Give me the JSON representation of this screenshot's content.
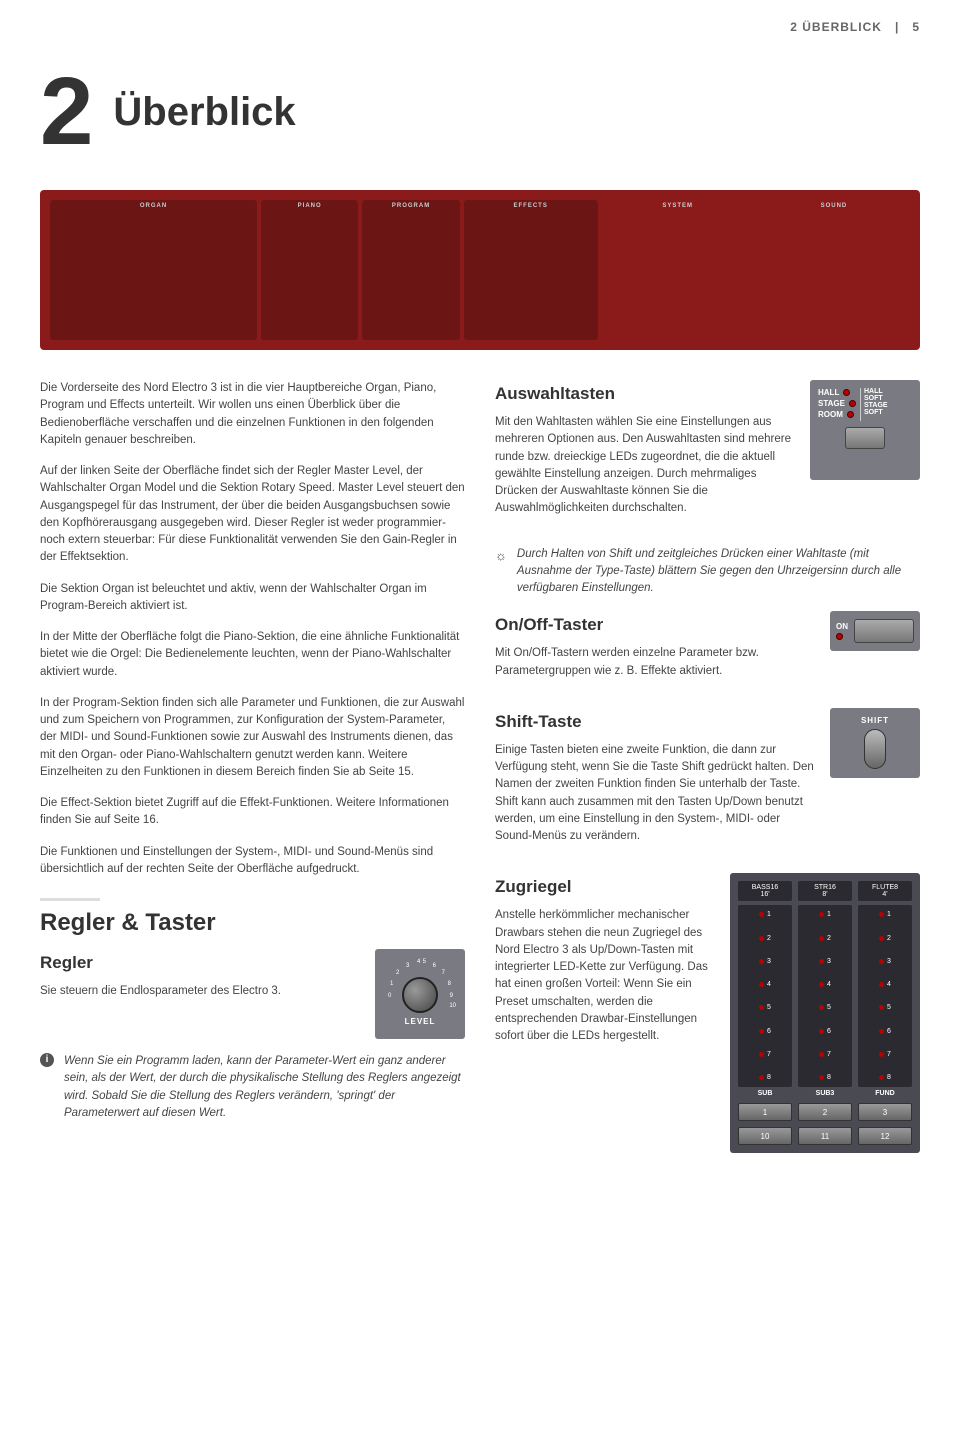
{
  "header": {
    "section": "2 ÜBERBLICK",
    "pagebar": "|",
    "pagenum": "5"
  },
  "chapter": {
    "num": "2",
    "title": "Überblick"
  },
  "panel": {
    "labels": [
      "ORGAN",
      "PIANO",
      "PROGRAM",
      "EFFECTS",
      "SYSTEM",
      "SOUND"
    ],
    "bg_color": "#8b1a1a"
  },
  "left_paragraphs": [
    "Die Vorderseite des Nord Electro 3 ist in die vier Hauptbereiche Organ, Piano, Program und Effects unterteilt. Wir wollen uns einen Überblick über die Bedienoberfläche verschaffen und die einzelnen Funktionen in den folgenden Kapiteln genauer beschreiben.",
    "Auf der linken Seite der Oberfläche findet sich der Regler Master Level, der Wahlschalter Organ Model und die Sektion Rotary Speed. Master Level steuert den Ausgangspegel für das Instrument, der über die beiden Ausgangsbuchsen sowie den Kopfhörerausgang ausgegeben wird. Dieser Regler ist weder programmier- noch extern steuerbar: Für diese Funktionalität verwenden Sie den Gain-Regler in der Effektsektion.",
    "Die Sektion Organ ist beleuchtet und aktiv, wenn der Wahlschalter Organ im Program-Bereich aktiviert ist.",
    "In der Mitte der Oberfläche folgt die Piano-Sektion, die eine ähnliche Funktionalität bietet wie die Orgel: Die Bedienelemente leuchten, wenn der Piano-Wahlschalter aktiviert wurde.",
    "In der Program-Sektion finden sich alle Parameter und Funktionen, die zur Auswahl und zum Speichern von Programmen, zur Konfiguration der System-Parameter, der MIDI- und Sound-Funktionen sowie zur Auswahl des Instruments dienen, das mit den Organ- oder Piano-Wahlschaltern genutzt werden kann. Weitere Einzelheiten zu den Funktionen in diesem Bereich finden Sie ab Seite 15.",
    "Die Effect-Sektion bietet Zugriff auf die Effekt-Funktionen. Weitere Informationen finden Sie auf Seite 16.",
    "Die Funktionen und Einstellungen der System-, MIDI- und Sound-Menüs sind übersichtlich auf der rechten Seite der Oberfläche aufgedruckt."
  ],
  "regler_section": {
    "h2": "Regler & Taster",
    "h3": "Regler",
    "p": "Sie steuern die Endlosparameter des Electro 3.",
    "note": "Wenn Sie ein Programm laden, kann der Parameter-Wert ein ganz anderer sein, als der Wert, der durch die physikalische Stellung des Reglers angezeigt wird. Sobald Sie die Stellung des Reglers verändern, 'springt' der Parameterwert auf diesen Wert.",
    "knob_label": "LEVEL",
    "knob_numbers": [
      "0",
      "1",
      "2",
      "3",
      "4",
      "5",
      "6",
      "7",
      "8",
      "9",
      "10"
    ]
  },
  "auswahl": {
    "h3": "Auswahltasten",
    "p": "Mit den Wahltasten wählen Sie eine Einstellungen aus mehreren Optionen aus. Den Auswahltasten sind mehrere runde bzw. dreieckige LEDs zugeordnet, die die aktuell gewählte Einstellung anzeigen. Durch mehrmaliges Drücken der Auswahltaste können Sie die Auswahlmöglichkeiten durchschalten.",
    "tip": "Durch Halten von Shift und zeitgleiches Drücken einer Wahltaste (mit Ausnahme der Type-Taste) blättern Sie gegen den Uhrzeigersinn durch alle verfügbaren Einstellungen.",
    "labels_left": [
      "HALL",
      "STAGE",
      "ROOM"
    ],
    "labels_right": [
      "HALL",
      "SOFT",
      "STAGE",
      "SOFT"
    ]
  },
  "onoff": {
    "h3": "On/Off-Taster",
    "p": "Mit On/Off-Tastern werden einzelne Parameter bzw. Parametergruppen wie z. B. Effekte aktiviert.",
    "label": "ON"
  },
  "shift": {
    "h3": "Shift-Taste",
    "p": "Einige Tasten bieten eine zweite Funktion, die dann zur Verfügung steht, wenn Sie die Taste Shift gedrückt halten. Den Namen der zweiten Funktion finden Sie unterhalb der Taste. Shift kann auch zusammen mit den Tasten Up/Down benutzt werden, um eine Einstellung in den System-, MIDI- oder Sound-Menüs zu verändern.",
    "label": "SHIFT"
  },
  "zugriegel": {
    "h3": "Zugriegel",
    "p": "Anstelle herkömmlicher mechanischer Drawbars stehen die neun Zugriegel des Nord Electro 3 als Up/Down-Tasten mit integrierter LED-Kette zur Verfügung. Das hat einen großen Vorteil: Wenn Sie ein Preset umschalten, werden die entsprechenden Drawbar-Einstellungen sofort über die LEDs hergestellt.",
    "headers": [
      {
        "top": "BASS16",
        "bot": "16'"
      },
      {
        "top": "STR16",
        "bot": "8'"
      },
      {
        "top": "FLUTE8",
        "bot": "4'"
      }
    ],
    "steps": [
      "1",
      "2",
      "3",
      "4",
      "5",
      "6",
      "7",
      "8"
    ],
    "footers": [
      "SUB",
      "SUB3",
      "FUND"
    ],
    "btns_top": [
      "1",
      "2",
      "3"
    ],
    "btns_bot": [
      "10",
      "11",
      "12"
    ]
  }
}
